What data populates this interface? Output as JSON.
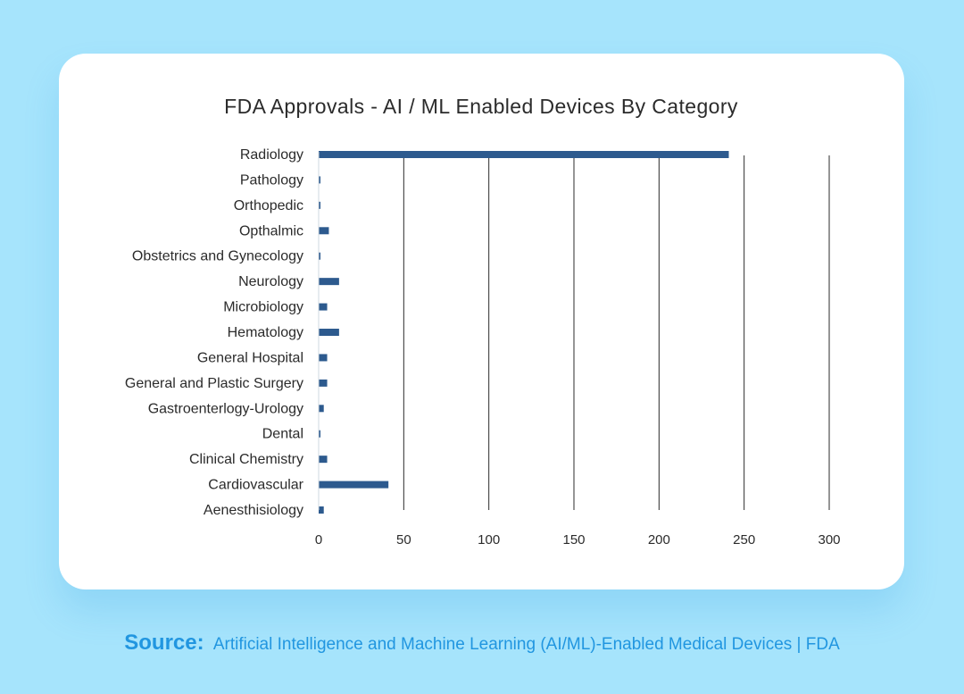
{
  "chart_data": {
    "type": "bar",
    "orientation": "horizontal",
    "title": "FDA Approvals - AI / ML Enabled Devices By Category",
    "categories": [
      "Radiology",
      "Pathology",
      "Orthopedic",
      "Opthalmic",
      "Obstetrics and Gynecology",
      "Neurology",
      "Microbiology",
      "Hematology",
      "General Hospital",
      "General and Plastic Surgery",
      "Gastroenterlogy-Urology",
      "Dental",
      "Clinical Chemistry",
      "Cardiovascular",
      "Aenesthisiology"
    ],
    "values": [
      241,
      1,
      1,
      6,
      1,
      12,
      5,
      12,
      5,
      5,
      3,
      1,
      5,
      41,
      3
    ],
    "xlim": [
      0,
      300
    ],
    "xticks": [
      0,
      50,
      100,
      150,
      200,
      250,
      300
    ],
    "grid": "vertical",
    "legend": "none",
    "colors": {
      "bar": "#2d5a8e",
      "grid": "#2b2b2b"
    }
  },
  "source": {
    "label": "Source:",
    "text": "Artificial Intelligence and Machine Learning (AI/ML)-Enabled Medical Devices | FDA"
  }
}
